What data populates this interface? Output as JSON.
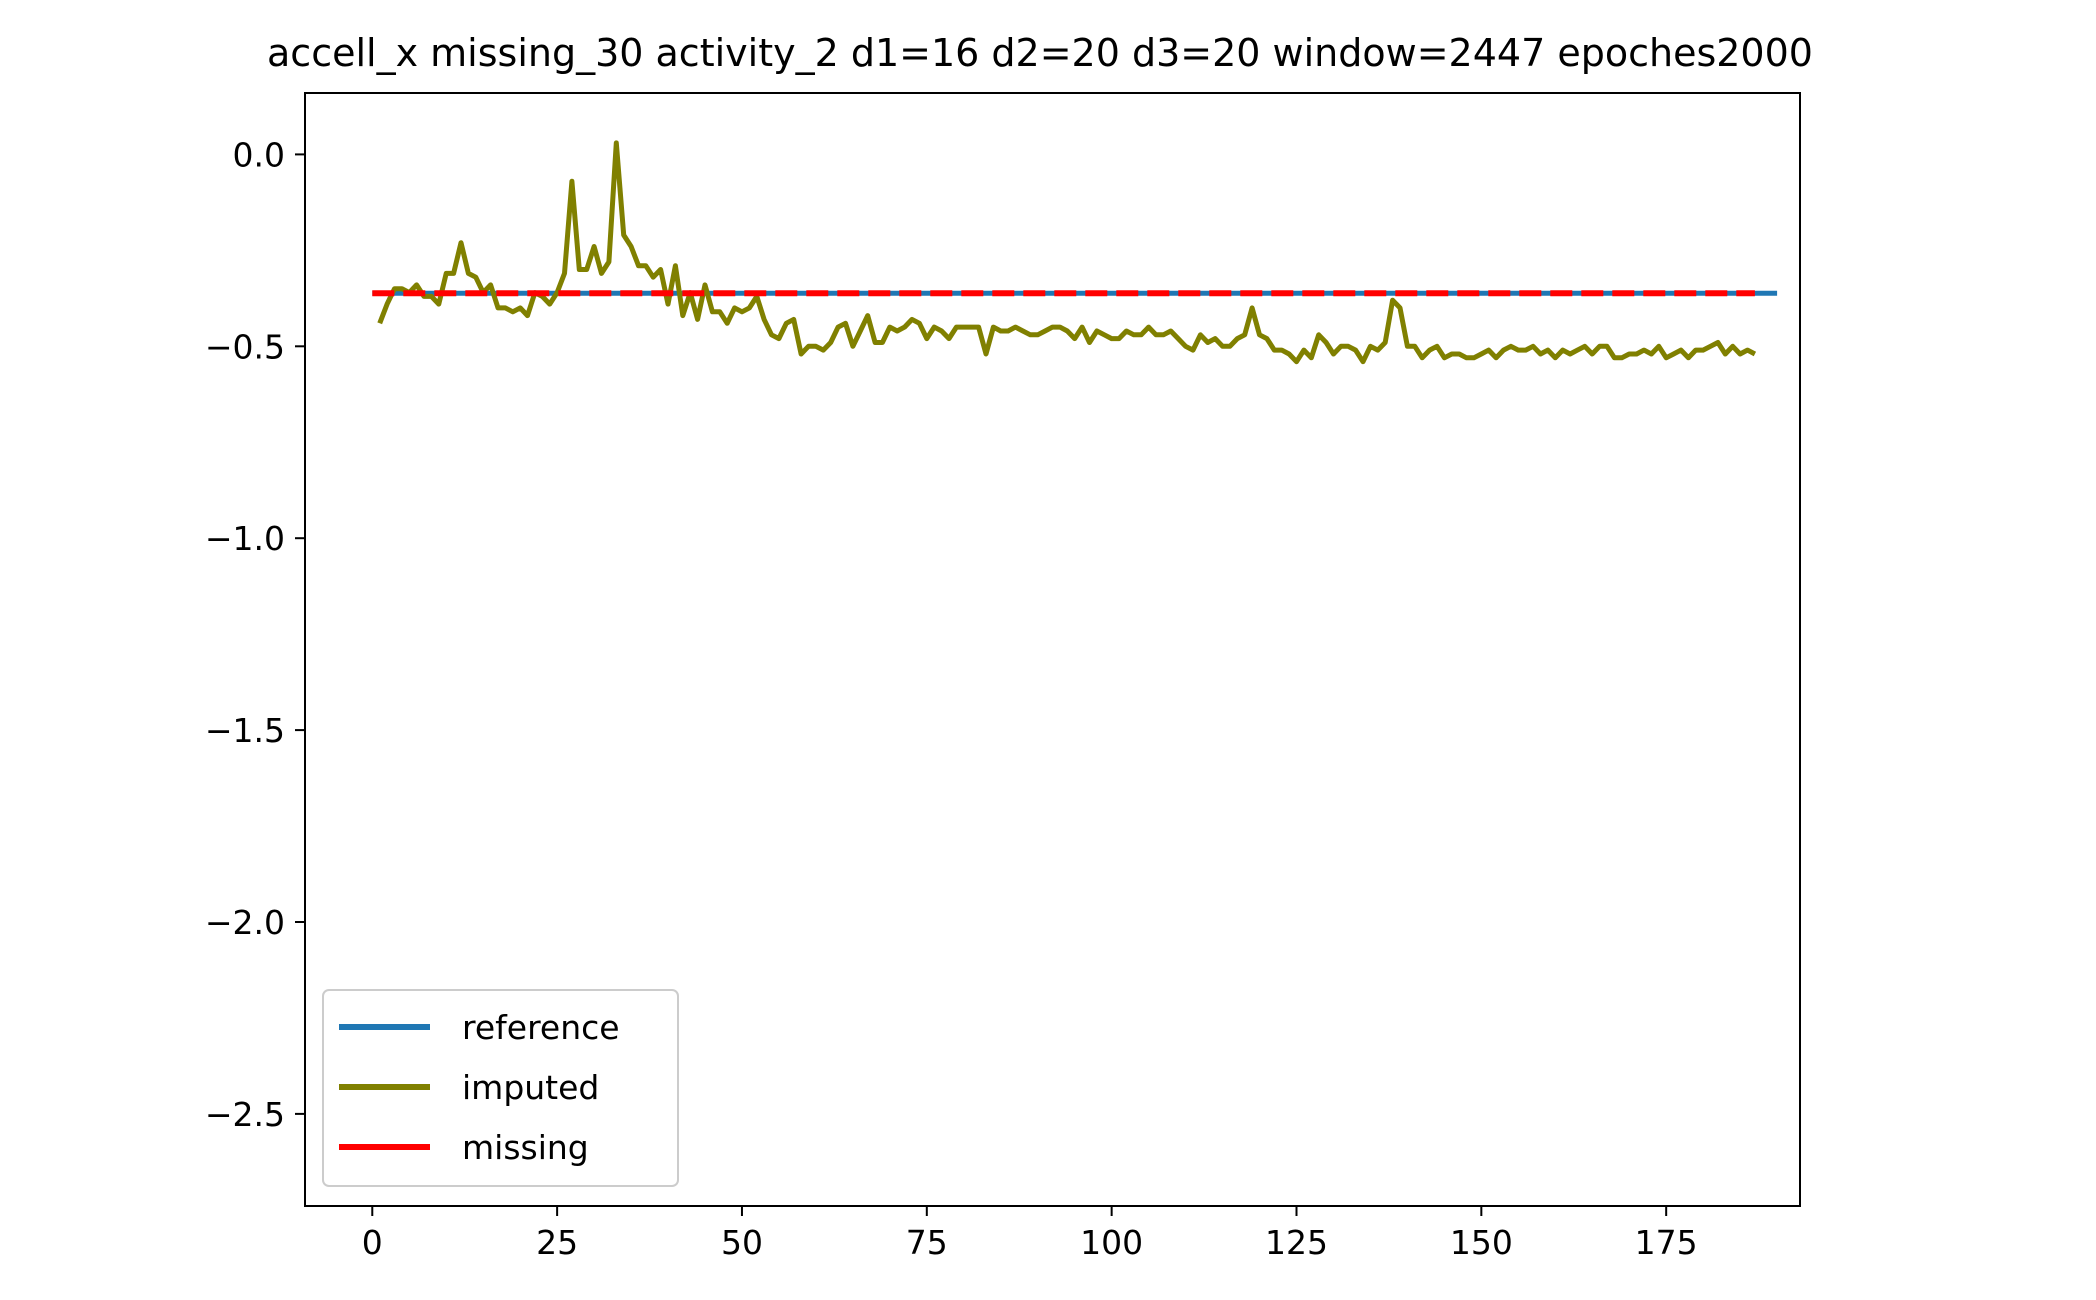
{
  "chart_data": {
    "type": "line",
    "title": "accell_x missing_30 activity_2 d1=16 d2=20 d3=20 window=2447 epoches2000",
    "xlabel": "",
    "ylabel": "",
    "xlim": [
      -9.1,
      193.1
    ],
    "ylim": [
      -2.74,
      0.16
    ],
    "xticks": [
      0,
      25,
      50,
      75,
      100,
      125,
      150,
      175
    ],
    "xtick_labels": [
      "0",
      "25",
      "50",
      "75",
      "100",
      "125",
      "150",
      "175"
    ],
    "yticks": [
      0.0,
      -0.5,
      -1.0,
      -1.5,
      -2.0,
      -2.5
    ],
    "ytick_labels": [
      "0.0",
      "−0.5",
      "−1.0",
      "−1.5",
      "−2.0",
      "−2.5"
    ],
    "grid": false,
    "legend_position": "lower-left",
    "series": [
      {
        "name": "reference",
        "color": "#1f77b4",
        "x_start": 0,
        "values": [
          -0.362,
          -0.362,
          -0.362,
          -0.362,
          -0.362,
          -0.362,
          -0.362,
          -0.362,
          -0.362,
          -0.362,
          -0.362,
          -0.362,
          -0.362,
          -0.362,
          -0.362,
          -0.362,
          -0.362,
          -0.362,
          -0.362,
          -0.362,
          -0.362,
          -0.362,
          -0.362,
          -0.362,
          -0.362,
          -0.362,
          -0.362,
          -0.362,
          -0.362,
          -0.362,
          -0.362,
          -0.362,
          -0.362,
          -0.362,
          -0.362,
          -0.362,
          -0.362,
          -0.362,
          -0.362,
          -0.362,
          -0.362,
          -0.362,
          -0.362,
          -0.362,
          -0.362,
          -0.362,
          -0.362,
          -0.362,
          -0.362,
          -0.362,
          -0.362,
          -0.362,
          -0.362,
          -0.362,
          -0.362,
          -0.362,
          -0.362,
          -0.362,
          -0.362,
          -0.362,
          -0.362,
          -0.362,
          -0.362,
          -0.362,
          -0.362,
          -0.362,
          -0.362,
          -0.362,
          -0.362,
          -0.362,
          -0.362,
          -0.362,
          -0.362,
          -0.362,
          -0.362,
          -0.362,
          -0.362,
          -0.362,
          -0.362,
          -0.362,
          -0.362,
          -0.362,
          -0.362,
          -0.362,
          -0.362,
          -0.362,
          -0.362,
          -0.362,
          -0.362,
          -0.362,
          -0.362,
          -0.362,
          -0.362,
          -0.362,
          -0.362,
          -0.362,
          -0.362,
          -0.362,
          -0.362,
          -0.362,
          -0.362,
          -0.362,
          -0.362,
          -0.362,
          -0.362,
          -0.362,
          -0.362,
          -0.362,
          -0.362,
          -0.362,
          -0.362,
          -0.362,
          -0.362,
          -0.362,
          -0.362,
          -0.362,
          -0.362,
          -0.362,
          -0.362,
          -0.362,
          -0.362,
          -0.362,
          -0.362,
          -0.362,
          -0.362,
          -0.362,
          -0.362,
          -0.362,
          -0.362,
          -0.362,
          -0.362,
          -0.362,
          -0.362,
          -0.362,
          -0.362,
          -0.362,
          -0.362,
          -0.362,
          -0.362,
          -0.362,
          -0.362,
          -0.362,
          -0.362,
          -0.362,
          -0.362,
          -0.362,
          -0.362,
          -0.362,
          -0.362,
          -0.362,
          -0.362,
          -0.362,
          -0.362,
          -0.362,
          -0.362,
          -0.362,
          -0.362,
          -0.362,
          -0.362,
          -0.362,
          -0.362,
          -0.362,
          -0.362,
          -0.362,
          -0.362,
          -0.362,
          -0.362,
          -0.362,
          -0.362,
          -0.362,
          -0.362,
          -0.362,
          -0.362,
          -0.362,
          -0.362,
          -0.362,
          -0.362,
          -0.362,
          -0.362,
          -0.362,
          -0.362,
          -0.362,
          -0.362,
          -0.362,
          -0.362,
          -0.362,
          -0.362,
          -0.362,
          -0.362,
          -0.362,
          -0.362
        ]
      },
      {
        "name": "imputed",
        "color": "#808000",
        "x_start": 1,
        "values": [
          -0.44,
          -0.39,
          -0.35,
          -0.35,
          -0.36,
          -0.34,
          -0.37,
          -0.37,
          -0.39,
          -0.31,
          -0.31,
          -0.23,
          -0.31,
          -0.32,
          -0.36,
          -0.34,
          -0.4,
          -0.4,
          -0.41,
          -0.4,
          -0.42,
          -0.36,
          -0.37,
          -0.39,
          -0.36,
          -0.31,
          -0.07,
          -0.3,
          -0.3,
          -0.24,
          -0.31,
          -0.28,
          0.03,
          -0.21,
          -0.24,
          -0.29,
          -0.29,
          -0.32,
          -0.3,
          -0.39,
          -0.29,
          -0.42,
          -0.36,
          -0.43,
          -0.34,
          -0.41,
          -0.41,
          -0.44,
          -0.4,
          -0.41,
          -0.4,
          -0.37,
          -0.43,
          -0.47,
          -0.48,
          -0.44,
          -0.43,
          -0.52,
          -0.5,
          -0.5,
          -0.51,
          -0.49,
          -0.45,
          -0.44,
          -0.5,
          -0.46,
          -0.42,
          -0.49,
          -0.49,
          -0.45,
          -0.46,
          -0.45,
          -0.43,
          -0.44,
          -0.48,
          -0.45,
          -0.46,
          -0.48,
          -0.45,
          -0.45,
          -0.45,
          -0.45,
          -0.52,
          -0.45,
          -0.46,
          -0.46,
          -0.45,
          -0.46,
          -0.47,
          -0.47,
          -0.46,
          -0.45,
          -0.45,
          -0.46,
          -0.48,
          -0.45,
          -0.49,
          -0.46,
          -0.47,
          -0.48,
          -0.48,
          -0.46,
          -0.47,
          -0.47,
          -0.45,
          -0.47,
          -0.47,
          -0.46,
          -0.48,
          -0.5,
          -0.51,
          -0.47,
          -0.49,
          -0.48,
          -0.5,
          -0.5,
          -0.48,
          -0.47,
          -0.4,
          -0.47,
          -0.48,
          -0.51,
          -0.51,
          -0.52,
          -0.54,
          -0.51,
          -0.53,
          -0.47,
          -0.49,
          -0.52,
          -0.5,
          -0.5,
          -0.51,
          -0.54,
          -0.5,
          -0.51,
          -0.49,
          -0.38,
          -0.4,
          -0.5,
          -0.5,
          -0.53,
          -0.51,
          -0.5,
          -0.53,
          -0.52,
          -0.52,
          -0.53,
          -0.53,
          -0.52,
          -0.51,
          -0.53,
          -0.51,
          -0.5,
          -0.51,
          -0.51,
          -0.5,
          -0.52,
          -0.51,
          -0.53,
          -0.51,
          -0.52,
          -0.51,
          -0.5,
          -0.52,
          -0.5,
          -0.5,
          -0.53,
          -0.53,
          -0.52,
          -0.52,
          -0.51,
          -0.52,
          -0.5,
          -0.53,
          -0.52,
          -0.51,
          -0.53,
          -0.51,
          -0.51,
          -0.5,
          -0.49,
          -0.52,
          -0.5,
          -0.52,
          -0.51,
          -0.52
        ]
      },
      {
        "name": "missing",
        "color": "#ff0000",
        "x_start": 0,
        "dashed": true,
        "values": [
          -0.362,
          -0.362,
          -0.362,
          -0.362,
          -0.362,
          -0.362,
          -0.362,
          -0.362,
          -0.362,
          -0.362,
          -0.362,
          -0.362,
          -0.362,
          -0.362,
          -0.362,
          -0.362,
          -0.362,
          -0.362,
          -0.362,
          -0.362,
          -0.362,
          -0.362,
          -0.362,
          -0.362,
          -0.362,
          -0.362,
          -0.362,
          -0.362,
          -0.362,
          -0.362,
          -0.362,
          -0.362,
          -0.362,
          -0.362,
          -0.362,
          -0.362,
          -0.362,
          -0.362,
          -0.362,
          -0.362,
          -0.362,
          -0.362,
          -0.362,
          -0.362,
          -0.362,
          -0.362,
          -0.362,
          -0.362,
          -0.362,
          -0.362,
          -0.362,
          -0.362,
          -0.362,
          -0.362,
          -0.362,
          -0.362,
          -0.362,
          -0.362,
          -0.362,
          -0.362,
          -0.362,
          -0.362,
          -0.362,
          -0.362,
          -0.362,
          -0.362,
          -0.362,
          -0.362,
          -0.362,
          -0.362,
          -0.362,
          -0.362,
          -0.362,
          -0.362,
          -0.362,
          -0.362,
          -0.362,
          -0.362,
          -0.362,
          -0.362,
          -0.362,
          -0.362,
          -0.362,
          -0.362,
          -0.362,
          -0.362,
          -0.362,
          -0.362,
          -0.362,
          -0.362,
          -0.362,
          -0.362,
          -0.362,
          -0.362,
          -0.362,
          -0.362,
          -0.362,
          -0.362,
          -0.362,
          -0.362,
          -0.362,
          -0.362,
          -0.362,
          -0.362,
          -0.362,
          -0.362,
          -0.362,
          -0.362,
          -0.362,
          -0.362,
          -0.362,
          -0.362,
          -0.362,
          -0.362,
          -0.362,
          -0.362,
          -0.362,
          -0.362,
          -0.362,
          -0.362,
          -0.362,
          -0.362,
          -0.362,
          -0.362,
          -0.362,
          -0.362,
          -0.362,
          -0.362,
          -0.362,
          -0.362,
          -0.362,
          -0.362,
          -0.362,
          -0.362,
          -0.362,
          -0.362,
          -0.362,
          -0.362,
          -0.362,
          -0.362,
          -0.362,
          -0.362,
          -0.362,
          -0.362,
          -0.362,
          -0.362,
          -0.362,
          -0.362,
          -0.362,
          -0.362,
          -0.362,
          -0.362,
          -0.362,
          -0.362,
          -0.362,
          -0.362,
          -0.362,
          -0.362,
          -0.362,
          -0.362,
          -0.362,
          -0.362,
          -0.362,
          -0.362,
          -0.362,
          -0.362,
          -0.362,
          -0.362,
          -0.362,
          -0.362,
          -0.362,
          -0.362,
          -0.362,
          -0.362,
          -0.362,
          -0.362,
          -0.362,
          -0.362,
          -0.362,
          -0.362,
          -0.362,
          -0.362,
          -0.362,
          -0.362,
          -0.362,
          -0.362,
          -0.362,
          -0.362
        ]
      }
    ]
  }
}
